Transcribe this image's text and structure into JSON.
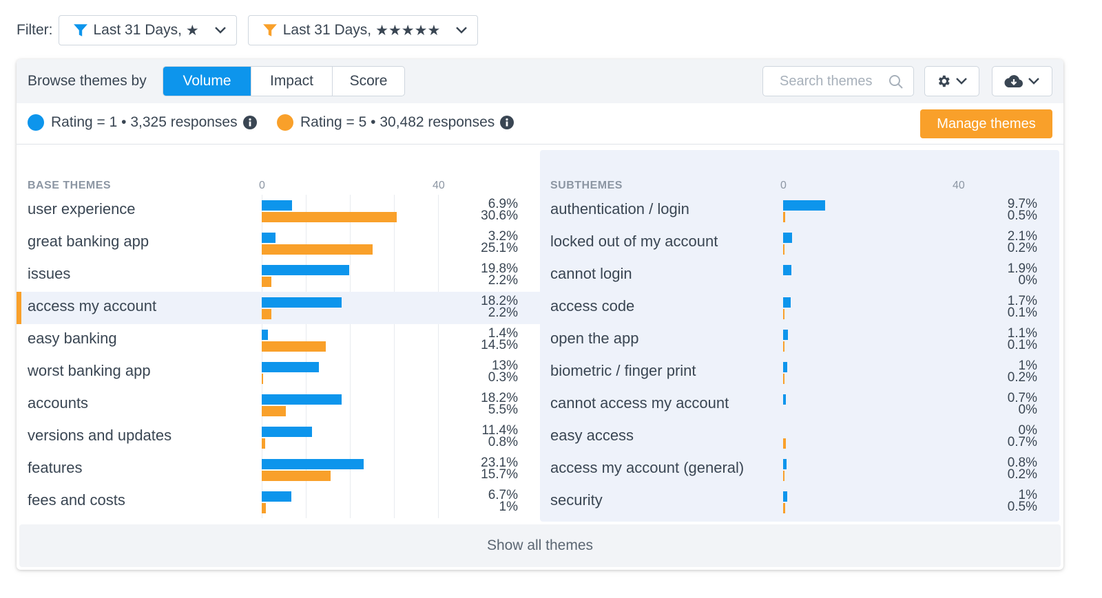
{
  "filter": {
    "label": "Filter:",
    "filters": [
      {
        "text": "Last 31 Days,",
        "stars": "★",
        "icon": "funnel-icon",
        "color": "#0d95ec"
      },
      {
        "text": "Last 31 Days,",
        "stars": "★★★★★",
        "icon": "funnel-icon",
        "color": "#f9a02a"
      }
    ]
  },
  "toolbar": {
    "browse_label": "Browse themes by",
    "tabs": [
      "Volume",
      "Impact",
      "Score"
    ],
    "active_tab": "Volume",
    "search_placeholder": "Search themes",
    "settings_icon": "gear-icon",
    "download_icon": "cloud-download-icon"
  },
  "legend": {
    "series": [
      {
        "label": "Rating = 1 • 3,325 responses",
        "color": "#0d95ec"
      },
      {
        "label": "Rating = 5 • 30,482 responses",
        "color": "#f9a02a"
      }
    ],
    "manage_label": "Manage themes",
    "manage_color": "#f9a02a"
  },
  "base_themes": {
    "header": "BASE THEMES",
    "axis_ticks": [
      "0",
      "40"
    ],
    "rows": [
      {
        "label": "user experience",
        "blue": 6.9,
        "orange": 30.6,
        "blue_text": "6.9%",
        "orange_text": "30.6%"
      },
      {
        "label": "great banking app",
        "blue": 3.2,
        "orange": 25.1,
        "blue_text": "3.2%",
        "orange_text": "25.1%"
      },
      {
        "label": "issues",
        "blue": 19.8,
        "orange": 2.2,
        "blue_text": "19.8%",
        "orange_text": "2.2%"
      },
      {
        "label": "access my account",
        "blue": 18.2,
        "orange": 2.2,
        "blue_text": "18.2%",
        "orange_text": "2.2%",
        "selected": true
      },
      {
        "label": "easy banking",
        "blue": 1.4,
        "orange": 14.5,
        "blue_text": "1.4%",
        "orange_text": "14.5%"
      },
      {
        "label": "worst banking app",
        "blue": 13,
        "orange": 0.3,
        "blue_text": "13%",
        "orange_text": "0.3%"
      },
      {
        "label": "accounts",
        "blue": 18.2,
        "orange": 5.5,
        "blue_text": "18.2%",
        "orange_text": "5.5%"
      },
      {
        "label": "versions and updates",
        "blue": 11.4,
        "orange": 0.8,
        "blue_text": "11.4%",
        "orange_text": "0.8%"
      },
      {
        "label": "features",
        "blue": 23.1,
        "orange": 15.7,
        "blue_text": "23.1%",
        "orange_text": "15.7%"
      },
      {
        "label": "fees and costs",
        "blue": 6.7,
        "orange": 1,
        "blue_text": "6.7%",
        "orange_text": "1%"
      }
    ]
  },
  "subthemes": {
    "header": "SUBTHEMES",
    "axis_ticks": [
      "0",
      "40"
    ],
    "rows": [
      {
        "label": "authentication / login",
        "blue": 9.7,
        "orange": 0.5,
        "blue_text": "9.7%",
        "orange_text": "0.5%"
      },
      {
        "label": "locked out of my account",
        "blue": 2.1,
        "orange": 0.2,
        "blue_text": "2.1%",
        "orange_text": "0.2%"
      },
      {
        "label": "cannot login",
        "blue": 1.9,
        "orange": 0,
        "blue_text": "1.9%",
        "orange_text": "0%"
      },
      {
        "label": "access code",
        "blue": 1.7,
        "orange": 0.1,
        "blue_text": "1.7%",
        "orange_text": "0.1%"
      },
      {
        "label": "open the app",
        "blue": 1.1,
        "orange": 0.1,
        "blue_text": "1.1%",
        "orange_text": "0.1%"
      },
      {
        "label": "biometric / finger print",
        "blue": 1,
        "orange": 0.2,
        "blue_text": "1%",
        "orange_text": "0.2%"
      },
      {
        "label": "cannot access my account",
        "blue": 0.7,
        "orange": 0,
        "blue_text": "0.7%",
        "orange_text": "0%"
      },
      {
        "label": "easy access",
        "blue": 0,
        "orange": 0.7,
        "blue_text": "0%",
        "orange_text": "0.7%"
      },
      {
        "label": "access my account (general)",
        "blue": 0.8,
        "orange": 0.2,
        "blue_text": "0.8%",
        "orange_text": "0.2%"
      },
      {
        "label": "security",
        "blue": 1,
        "orange": 0.5,
        "blue_text": "1%",
        "orange_text": "0.5%"
      }
    ]
  },
  "show_all_label": "Show all themes"
}
